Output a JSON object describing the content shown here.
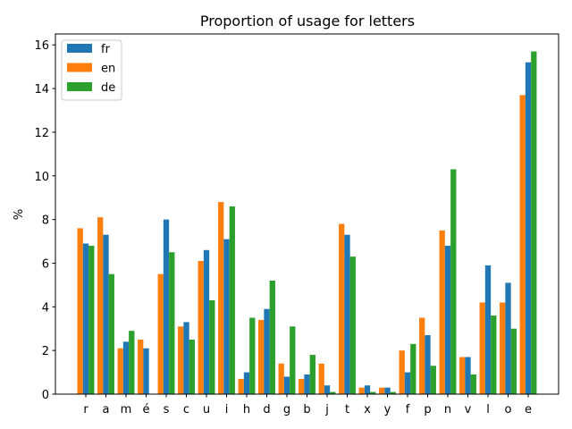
{
  "chart_data": {
    "type": "bar",
    "title": "Proportion of usage for letters",
    "xlabel": "",
    "ylabel": "%",
    "ylim": [
      0,
      16.5
    ],
    "yticks": [
      0,
      2,
      4,
      6,
      8,
      10,
      12,
      14,
      16
    ],
    "grid": false,
    "legend_position": "top-left",
    "categories": [
      "r",
      "a",
      "m",
      "é",
      "s",
      "c",
      "u",
      "i",
      "h",
      "d",
      "g",
      "b",
      "j",
      "t",
      "x",
      "y",
      "f",
      "p",
      "n",
      "v",
      "l",
      "o",
      "e"
    ],
    "series": [
      {
        "name": "en",
        "color": "#ff7f0e",
        "values": [
          7.6,
          8.1,
          2.1,
          2.5,
          5.5,
          3.1,
          6.1,
          8.8,
          0.7,
          3.4,
          1.4,
          0.7,
          1.4,
          7.8,
          0.3,
          0.3,
          2.0,
          3.5,
          7.5,
          1.7,
          4.2,
          4.2,
          13.7
        ]
      },
      {
        "name": "fr",
        "color": "#1f77b4",
        "values": [
          6.9,
          7.3,
          2.4,
          2.1,
          8.0,
          3.3,
          6.6,
          7.1,
          1.0,
          3.9,
          0.8,
          0.9,
          0.4,
          7.3,
          0.4,
          0.3,
          1.0,
          2.7,
          6.8,
          1.7,
          5.9,
          5.1,
          15.2
        ]
      },
      {
        "name": "de",
        "color": "#2ca02c",
        "values": [
          6.8,
          5.5,
          2.9,
          0.0,
          6.5,
          2.5,
          4.3,
          8.6,
          3.5,
          5.2,
          3.1,
          1.8,
          0.1,
          6.3,
          0.1,
          0.1,
          2.3,
          1.3,
          10.3,
          0.9,
          3.6,
          3.0,
          15.7
        ]
      }
    ],
    "legend_order": [
      "fr",
      "en",
      "de"
    ]
  }
}
